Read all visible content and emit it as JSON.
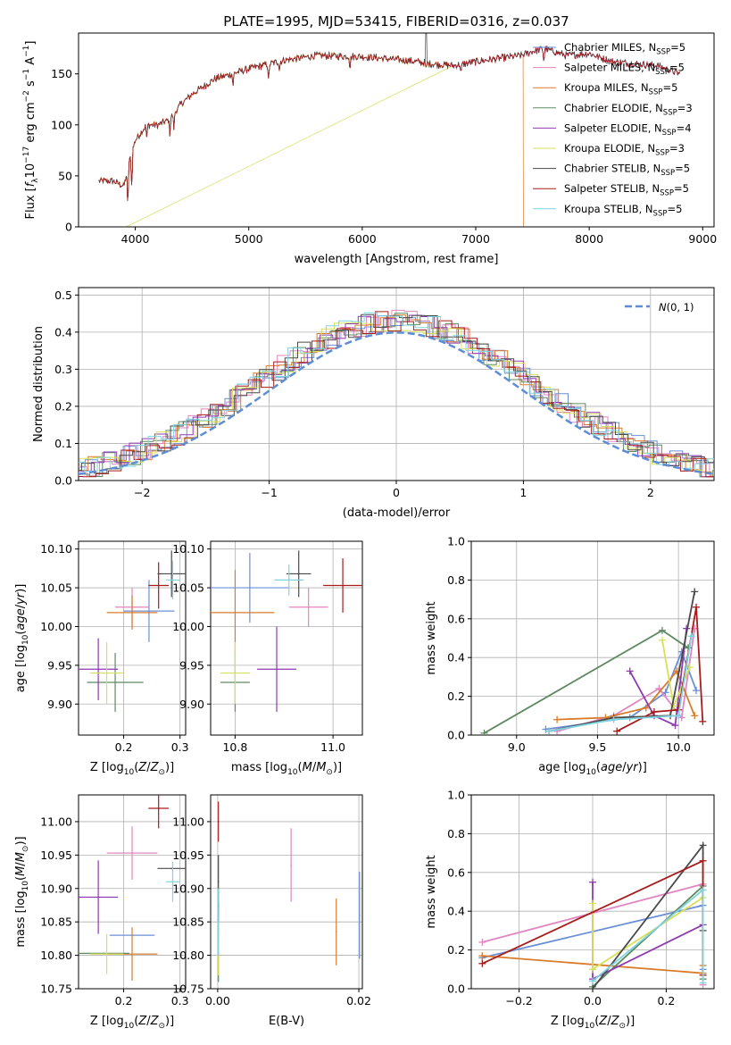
{
  "title": "PLATE=1995, MJD=53415, FIBERID=0316, z=0.037",
  "colors": {
    "series": [
      "#6a8fd8",
      "#e285c0",
      "#d97c2a",
      "#5e8a62",
      "#8e3ab0",
      "#d8e05a",
      "#4a4a4a",
      "#a81c1c",
      "#7fd4e0"
    ],
    "gaussian": "#5b8ed6",
    "grid": "#b0b0b0"
  },
  "chart_data": [
    {
      "type": "line",
      "panel": "spectrum",
      "xlabel": "wavelength [Angstrom, rest frame]",
      "ylabel": "Flux [f_λ 10^-17 erg cm^-2 s^-1 A^-1]",
      "xlim": [
        3500,
        9100
      ],
      "ylim": [
        0,
        190
      ],
      "xticks": [
        "4000",
        "5000",
        "6000",
        "7000",
        "8000",
        "9000"
      ],
      "yticks": [
        "0",
        "50",
        "100",
        "150"
      ],
      "grid": false,
      "legend_position": "top-right",
      "legend": [
        {
          "label": "Chabrier MILES, N",
          "sub": "SSP",
          "tail": "=5"
        },
        {
          "label": "Salpeter MILES, N",
          "sub": "SSP",
          "tail": "=5"
        },
        {
          "label": "Kroupa MILES, N",
          "sub": "SSP",
          "tail": "=5"
        },
        {
          "label": "Chabrier ELODIE, N",
          "sub": "SSP",
          "tail": "=3"
        },
        {
          "label": "Salpeter ELODIE, N",
          "sub": "SSP",
          "tail": "=4"
        },
        {
          "label": "Kroupa ELODIE, N",
          "sub": "SSP",
          "tail": "=3"
        },
        {
          "label": "Chabrier STELIB, N",
          "sub": "SSP",
          "tail": "=5"
        },
        {
          "label": "Salpeter STELIB, N",
          "sub": "SSP",
          "tail": "=5"
        },
        {
          "label": "Kroupa STELIB, N",
          "sub": "SSP",
          "tail": "=5"
        }
      ],
      "continuum": {
        "x": [
          3680,
          3800,
          3900,
          3950,
          4000,
          4100,
          4200,
          4300,
          4400,
          4500,
          4700,
          5000,
          5300,
          5600,
          5900,
          6000,
          6200,
          6400,
          6600,
          6800,
          7000,
          7200,
          7400,
          7500,
          7600,
          7800,
          8000,
          8200,
          8400,
          8600,
          8800
        ],
        "y": [
          45,
          45,
          40,
          65,
          85,
          100,
          100,
          105,
          120,
          130,
          145,
          155,
          163,
          168,
          167,
          167,
          165,
          163,
          160,
          158,
          162,
          165,
          168,
          172,
          175,
          168,
          170,
          162,
          160,
          158,
          150
        ]
      },
      "spectrum_end_x": [
        8800,
        8800,
        7420,
        8800,
        8800,
        6780,
        8800,
        8800,
        8800
      ],
      "drop_x": [
        null,
        null,
        7420,
        null,
        null,
        3920,
        null,
        null,
        null
      ]
    },
    {
      "type": "histogram",
      "panel": "residuals",
      "xlabel": "(data-model)/error",
      "ylabel": "Normed distribution",
      "xlim": [
        -2.5,
        2.5
      ],
      "ylim": [
        0,
        0.52
      ],
      "xticks": [
        "−2",
        "−1",
        "0",
        "1",
        "2"
      ],
      "yticks": [
        "0.0",
        "0.1",
        "0.2",
        "0.3",
        "0.4",
        "0.5"
      ],
      "grid": true,
      "gaussian_label": "N(0, 1)",
      "legend_position": "top-right",
      "bin_width": 0.1
    },
    {
      "type": "scatter",
      "panel": "age-vs-Z",
      "xlabel": "Z [log10(Z/Z⊙)]",
      "ylabel": "age [log10(age/yr)]",
      "xlim": [
        0.12,
        0.31
      ],
      "ylim": [
        9.86,
        10.11
      ],
      "xticks": [
        "0.2",
        "0.3"
      ],
      "yticks": [
        "9.90",
        "9.95",
        "10.00",
        "10.05",
        "10.10"
      ],
      "grid": true,
      "points": [
        {
          "x": 0.245,
          "xerr": 0.045,
          "y": 10.02,
          "yerr": 0.04
        },
        {
          "x": 0.215,
          "xerr": 0.03,
          "y": 10.025,
          "yerr": 0.025
        },
        {
          "x": 0.215,
          "xerr": 0.045,
          "y": 10.018,
          "yerr": 0.022
        },
        {
          "x": 0.185,
          "xerr": 0.05,
          "y": 9.928,
          "yerr": 0.038
        },
        {
          "x": 0.155,
          "xerr": 0.035,
          "y": 9.945,
          "yerr": 0.04
        },
        {
          "x": 0.17,
          "xerr": 0.03,
          "y": 9.94,
          "yerr": 0.04
        },
        {
          "x": 0.285,
          "xerr": 0.025,
          "y": 10.068,
          "yerr": 0.03
        },
        {
          "x": 0.262,
          "xerr": 0.018,
          "y": 10.053,
          "yerr": 0.03
        },
        {
          "x": 0.287,
          "xerr": 0.012,
          "y": 10.06,
          "yerr": 0.025
        }
      ]
    },
    {
      "type": "scatter",
      "panel": "age-vs-mass",
      "xlabel": "mass [log10(M/M⊙)]",
      "ylabel": "",
      "xlim": [
        10.75,
        11.06
      ],
      "ylim": [
        9.86,
        10.11
      ],
      "xticks": [
        "10.8",
        "11.0"
      ],
      "yticks": [
        "9.90",
        "9.95",
        "10.00",
        "10.05",
        "10.10"
      ],
      "grid": true,
      "points": [
        {
          "x": 10.83,
          "xerr": 0.08,
          "y": 10.05,
          "yerr": 0.045
        },
        {
          "x": 10.95,
          "xerr": 0.04,
          "y": 10.025,
          "yerr": 0.025
        },
        {
          "x": 10.8,
          "xerr": 0.08,
          "y": 10.018,
          "yerr": 0.055
        },
        {
          "x": 10.8,
          "xerr": 0.03,
          "y": 9.928,
          "yerr": 0.038
        },
        {
          "x": 10.885,
          "xerr": 0.04,
          "y": 9.945,
          "yerr": 0.055
        },
        {
          "x": 10.8,
          "xerr": 0.03,
          "y": 9.94,
          "yerr": 0.04
        },
        {
          "x": 10.93,
          "xerr": 0.025,
          "y": 10.068,
          "yerr": 0.03
        },
        {
          "x": 11.02,
          "xerr": 0.04,
          "y": 10.053,
          "yerr": 0.035
        },
        {
          "x": 10.91,
          "xerr": 0.03,
          "y": 10.06,
          "yerr": 0.02
        }
      ]
    },
    {
      "type": "line",
      "panel": "mass-weight-vs-age",
      "xlabel": "age [log10(age/yr)]",
      "ylabel": "mass weight",
      "xlim": [
        8.72,
        10.22
      ],
      "ylim": [
        0,
        1.0
      ],
      "xticks": [
        "9.0",
        "9.5",
        "10.0"
      ],
      "yticks": [
        "0.0",
        "0.2",
        "0.4",
        "0.6",
        "0.8",
        "1.0"
      ],
      "grid": true,
      "series": [
        {
          "x": [
            9.18,
            9.7,
            9.92,
            10.02,
            10.11
          ],
          "y": [
            0.03,
            0.09,
            0.22,
            0.43,
            0.23
          ]
        },
        {
          "x": [
            9.25,
            9.6,
            9.88,
            10.02,
            10.1
          ],
          "y": [
            0.02,
            0.1,
            0.24,
            0.09,
            0.55
          ]
        },
        {
          "x": [
            9.25,
            9.55,
            9.8,
            9.99,
            10.1
          ],
          "y": [
            0.08,
            0.09,
            0.14,
            0.33,
            0.1
          ]
        },
        {
          "x": [
            8.8,
            9.9,
            10.06
          ],
          "y": [
            0.01,
            0.54,
            0.45
          ]
        },
        {
          "x": [
            9.7,
            9.85,
            9.98,
            10.05
          ],
          "y": [
            0.33,
            0.1,
            0.05,
            0.55
          ]
        },
        {
          "x": [
            9.9,
            9.97,
            10.07
          ],
          "y": [
            0.49,
            0.15,
            0.35
          ]
        },
        {
          "x": [
            9.2,
            9.6,
            9.95,
            10.1
          ],
          "y": [
            0.02,
            0.09,
            0.1,
            0.74
          ]
        },
        {
          "x": [
            9.62,
            9.85,
            10.0,
            10.11,
            10.15
          ],
          "y": [
            0.02,
            0.12,
            0.13,
            0.66,
            0.07
          ]
        },
        {
          "x": [
            9.2,
            9.6,
            10.0,
            10.08
          ],
          "y": [
            0.02,
            0.08,
            0.1,
            0.51
          ]
        }
      ]
    },
    {
      "type": "scatter",
      "panel": "mass-vs-Z",
      "xlabel": "Z [log10(Z/Z⊙)]",
      "ylabel": "mass [log10(M/M⊙)]",
      "xlim": [
        0.12,
        0.31
      ],
      "ylim": [
        10.75,
        11.04
      ],
      "xticks": [
        "0.2",
        "0.3"
      ],
      "yticks": [
        "10.75",
        "10.80",
        "10.85",
        "10.90",
        "10.95",
        "11.00"
      ],
      "grid": true,
      "points": [
        {
          "x": 0.215,
          "xerr": 0.04,
          "y": 10.83,
          "yerr": 0.0
        },
        {
          "x": 0.215,
          "xerr": 0.045,
          "y": 10.953,
          "yerr": 0.04
        },
        {
          "x": 0.215,
          "xerr": 0.045,
          "y": 10.802,
          "yerr": 0.04
        },
        {
          "x": 0.165,
          "xerr": 0.045,
          "y": 10.803,
          "yerr": 0.0
        },
        {
          "x": 0.155,
          "xerr": 0.035,
          "y": 10.887,
          "yerr": 0.055
        },
        {
          "x": 0.17,
          "xerr": 0.03,
          "y": 10.802,
          "yerr": 0.03
        },
        {
          "x": 0.285,
          "xerr": 0.025,
          "y": 10.93,
          "yerr": 0.0
        },
        {
          "x": 0.262,
          "xerr": 0.018,
          "y": 11.02,
          "yerr": 0.03
        },
        {
          "x": 0.287,
          "xerr": 0.012,
          "y": 10.91,
          "yerr": 0.03
        }
      ]
    },
    {
      "type": "scatter",
      "panel": "mass-vs-EBV",
      "xlabel": "E(B-V)",
      "ylabel": "",
      "xlim": [
        -0.001,
        0.0205
      ],
      "ylim": [
        10.75,
        11.04
      ],
      "xticks": [
        "0.00",
        "0.02"
      ],
      "yticks": [
        "10.75",
        "10.80",
        "10.85",
        "10.90",
        "10.95",
        "11.00"
      ],
      "grid": true,
      "points": [
        {
          "x": 0.0201,
          "y": 10.86,
          "yerr": 0.065
        },
        {
          "x": 0.0104,
          "y": 10.935,
          "yerr": 0.055
        },
        {
          "x": 0.0168,
          "y": 10.835,
          "yerr": 0.05
        },
        {
          "x": 0.0001,
          "y": 10.82,
          "yerr": 0.06
        },
        {
          "x": 0.0001,
          "y": 10.85,
          "yerr": 0.03
        },
        {
          "x": 0.0001,
          "y": 10.81,
          "yerr": 0.04
        },
        {
          "x": 0.0001,
          "y": 10.91,
          "yerr": 0.04
        },
        {
          "x": 0.0001,
          "y": 11.0,
          "yerr": 0.03
        },
        {
          "x": 0.0001,
          "y": 10.85,
          "yerr": 0.05
        }
      ]
    },
    {
      "type": "line",
      "panel": "mass-weight-vs-Z",
      "xlabel": "Z [log10(Z/Z⊙)]",
      "ylabel": "mass weight",
      "xlim": [
        -0.33,
        0.33
      ],
      "ylim": [
        0,
        1.0
      ],
      "xticks": [
        "−0.2",
        "0.0",
        "0.2"
      ],
      "yticks": [
        "0.0",
        "0.2",
        "0.4",
        "0.6",
        "0.8",
        "1.0"
      ],
      "grid": true,
      "series": [
        {
          "x": [
            -0.3,
            0.3,
            0.3
          ],
          "y": [
            0.16,
            0.43,
            0.1
          ]
        },
        {
          "x": [
            -0.3,
            0.3,
            0.3
          ],
          "y": [
            0.24,
            0.54,
            0.02
          ]
        },
        {
          "x": [
            -0.3,
            0.3,
            0.3
          ],
          "y": [
            0.17,
            0.08,
            0.12
          ]
        },
        {
          "x": [
            0.0,
            0.3,
            0.3
          ],
          "y": [
            0.01,
            0.53,
            0.05
          ]
        },
        {
          "x": [
            0.0,
            0.0,
            0.3
          ],
          "y": [
            0.55,
            0.05,
            0.33
          ]
        },
        {
          "x": [
            0.0,
            0.0,
            0.3
          ],
          "y": [
            0.44,
            0.1,
            0.47
          ]
        },
        {
          "x": [
            0.0,
            0.3,
            0.3
          ],
          "y": [
            0.0,
            0.74,
            0.3
          ]
        },
        {
          "x": [
            -0.3,
            0.3,
            0.3
          ],
          "y": [
            0.13,
            0.66,
            0.07
          ]
        },
        {
          "x": [
            0.0,
            0.3,
            0.3
          ],
          "y": [
            0.04,
            0.51,
            0.03
          ]
        }
      ]
    }
  ]
}
